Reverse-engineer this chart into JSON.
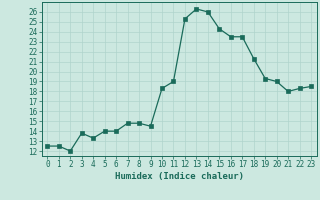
{
  "x": [
    0,
    1,
    2,
    3,
    4,
    5,
    6,
    7,
    8,
    9,
    10,
    11,
    12,
    13,
    14,
    15,
    16,
    17,
    18,
    19,
    20,
    21,
    22,
    23
  ],
  "y": [
    12.5,
    12.5,
    12.0,
    13.8,
    13.3,
    14.0,
    14.0,
    14.8,
    14.8,
    14.5,
    18.3,
    19.0,
    25.3,
    26.3,
    26.0,
    24.3,
    23.5,
    23.5,
    21.3,
    19.3,
    19.0,
    18.0,
    18.3,
    18.5
  ],
  "line_color": "#1a6b5a",
  "marker": "s",
  "marker_size": 2.2,
  "bg_color": "#cce8e0",
  "grid_color": "#b0d4cc",
  "xlabel": "Humidex (Indice chaleur)",
  "ylabel_ticks": [
    12,
    13,
    14,
    15,
    16,
    17,
    18,
    19,
    20,
    21,
    22,
    23,
    24,
    25,
    26
  ],
  "ylim": [
    11.5,
    27.0
  ],
  "xlim": [
    -0.5,
    23.5
  ],
  "xticks": [
    0,
    1,
    2,
    3,
    4,
    5,
    6,
    7,
    8,
    9,
    10,
    11,
    12,
    13,
    14,
    15,
    16,
    17,
    18,
    19,
    20,
    21,
    22,
    23
  ],
  "xlabel_fontsize": 6.5,
  "tick_fontsize": 5.5,
  "line_width": 0.9
}
